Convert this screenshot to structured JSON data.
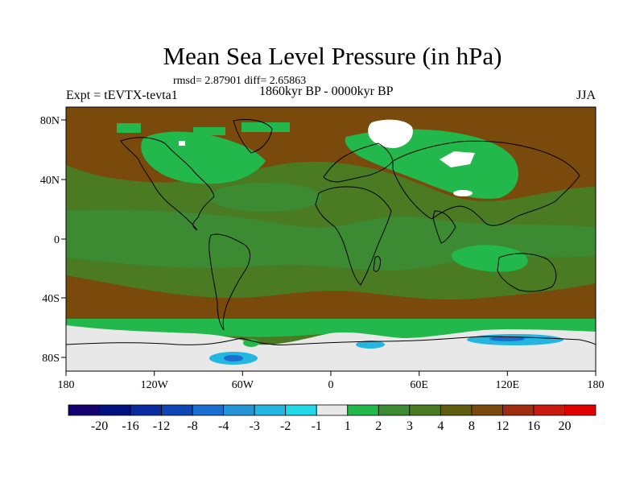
{
  "title": "Mean Sea Level Pressure (in hPa)",
  "stats": "rmsd= 2.87901 diff= 2.65863",
  "experiment": "Expt = tEVTX-tevta1",
  "period": "1860kyr BP - 0000kyr BP",
  "season": "JJA",
  "lat_labels": [
    "80N",
    "40N",
    "0",
    "40S",
    "80S"
  ],
  "lon_labels": [
    "180",
    "120W",
    "60W",
    "0",
    "60E",
    "120E",
    "180"
  ],
  "colorbar": {
    "labels": [
      "-20",
      "-16",
      "-12",
      "-8",
      "-4",
      "-3",
      "-2",
      "-1",
      "1",
      "2",
      "3",
      "4",
      "8",
      "12",
      "16",
      "20"
    ],
    "colors": [
      "#14006e",
      "#00107e",
      "#0a2aa0",
      "#1046b4",
      "#1a6ed0",
      "#2496d8",
      "#22b6e0",
      "#22d8e6",
      "#e8e8e8",
      "#22b84c",
      "#3c8a32",
      "#4a7a22",
      "#5e5e0e",
      "#7a4a0c",
      "#a02c10",
      "#c81a0e",
      "#e00000"
    ]
  },
  "palette": {
    "ice": "#e8e8e8",
    "green": "#22b84c",
    "olive": "#3c8a32",
    "dark_olive": "#4a7a22",
    "brown": "#7a4a0c",
    "light_blue": "#22b6e0",
    "blue": "#1a6ed0",
    "white": "#ffffff"
  }
}
